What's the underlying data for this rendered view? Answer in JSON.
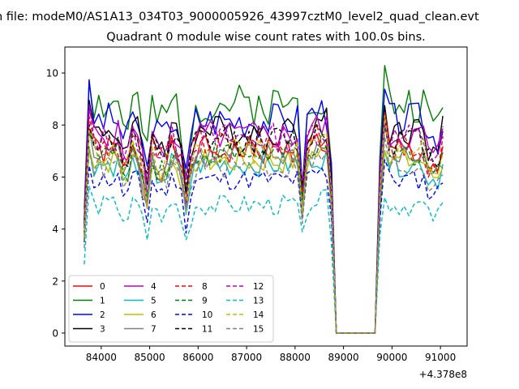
{
  "figure": {
    "suptitle": "n file: modeM0/AS1A13_034T03_9000005926_43997cztM0_level2_quad_clean.evt",
    "title": "Quadrant 0 module wise count rates with 100.0s bins."
  },
  "chart_data": {
    "type": "line",
    "title": "Quadrant 0 module wise count rates with 100.0s bins.",
    "xlabel": "",
    "ylabel": "",
    "x_offset_label": "+4.378e8",
    "xlim": [
      83250,
      91550
    ],
    "ylim": [
      -0.5,
      11.0
    ],
    "x_ticks": [
      84000,
      85000,
      86000,
      87000,
      88000,
      89000,
      90000,
      91000
    ],
    "x_tick_labels": [
      "84000",
      "85000",
      "86000",
      "87000",
      "88000",
      "89000",
      "90000",
      "91000"
    ],
    "y_ticks": [
      0,
      2,
      4,
      6,
      8,
      10
    ],
    "y_tick_labels": [
      "0",
      "2",
      "4",
      "6",
      "8",
      "10"
    ],
    "grid": false,
    "legend_position": "lower-left",
    "legend_columns": 4,
    "gap_start": 88750,
    "gap_end": 89750,
    "series": [
      {
        "name": "0",
        "color": "#ff0000",
        "dash": "solid",
        "base": 7.0,
        "amp": 0.6,
        "seed": 1
      },
      {
        "name": "1",
        "color": "#008000",
        "dash": "solid",
        "base": 8.8,
        "amp": 0.8,
        "seed": 2
      },
      {
        "name": "2",
        "color": "#0000ff",
        "dash": "solid",
        "base": 8.2,
        "amp": 0.7,
        "seed": 3
      },
      {
        "name": "3",
        "color": "#000000",
        "dash": "solid",
        "base": 7.8,
        "amp": 0.6,
        "seed": 4
      },
      {
        "name": "4",
        "color": "#bf00bf",
        "dash": "solid",
        "base": 7.6,
        "amp": 0.6,
        "seed": 5
      },
      {
        "name": "5",
        "color": "#00bfbf",
        "dash": "solid",
        "base": 6.5,
        "amp": 0.5,
        "seed": 6
      },
      {
        "name": "6",
        "color": "#bfbf00",
        "dash": "solid",
        "base": 6.6,
        "amp": 0.5,
        "seed": 7
      },
      {
        "name": "7",
        "color": "#808080",
        "dash": "solid",
        "base": 6.8,
        "amp": 0.5,
        "seed": 8
      },
      {
        "name": "8",
        "color": "#ff0000",
        "dash": "dashed",
        "base": 7.2,
        "amp": 0.6,
        "seed": 9
      },
      {
        "name": "9",
        "color": "#008000",
        "dash": "dashed",
        "base": 6.9,
        "amp": 0.5,
        "seed": 10
      },
      {
        "name": "10",
        "color": "#0000ff",
        "dash": "dashed",
        "base": 5.9,
        "amp": 0.4,
        "seed": 11
      },
      {
        "name": "11",
        "color": "#000000",
        "dash": "dashed",
        "base": 7.4,
        "amp": 0.6,
        "seed": 12
      },
      {
        "name": "12",
        "color": "#bf00bf",
        "dash": "dashed",
        "base": 7.5,
        "amp": 0.6,
        "seed": 13
      },
      {
        "name": "13",
        "color": "#00bfbf",
        "dash": "dashed",
        "base": 4.9,
        "amp": 0.4,
        "seed": 14
      },
      {
        "name": "14",
        "color": "#bfbf00",
        "dash": "dashed",
        "base": 7.0,
        "amp": 0.5,
        "seed": 15
      },
      {
        "name": "15",
        "color": "#808080",
        "dash": "dashed",
        "base": 6.4,
        "amp": 0.5,
        "seed": 16
      }
    ]
  }
}
